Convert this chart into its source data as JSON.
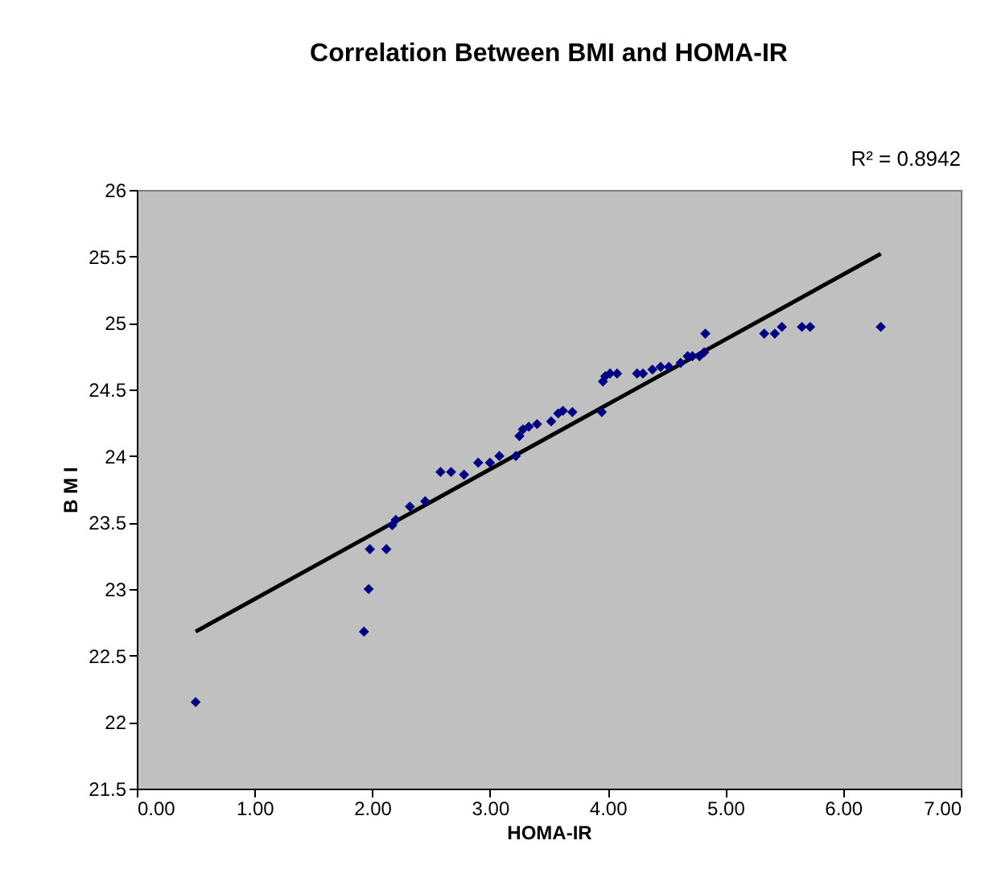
{
  "chart_data": {
    "type": "scatter",
    "title": "Correlation Between BMI and HOMA-IR",
    "xlabel": "HOMA-IR",
    "ylabel": "B M I",
    "annotations": [
      "R² = 0.8942"
    ],
    "xlim": [
      0,
      7
    ],
    "xticks": [
      {
        "value": 0,
        "label": "0.00"
      },
      {
        "value": 1,
        "label": "1.00"
      },
      {
        "value": 2,
        "label": "2.00"
      },
      {
        "value": 3,
        "label": "3.00"
      },
      {
        "value": 4,
        "label": "4.00"
      },
      {
        "value": 5,
        "label": "5.00"
      },
      {
        "value": 6,
        "label": "6.00"
      },
      {
        "value": 7,
        "label": "7.00"
      }
    ],
    "ylim": [
      21.5,
      26
    ],
    "yticks": [
      21.5,
      22,
      22.5,
      23,
      23.5,
      24,
      24.5,
      25,
      25.5,
      26
    ],
    "grid": false,
    "line_style": "solid",
    "series": [
      {
        "marker": "diamond",
        "color": "#000080",
        "x": [
          0.5,
          1.93,
          1.97,
          1.98,
          2.12,
          2.17,
          2.2,
          2.32,
          2.45,
          2.58,
          2.67,
          2.78,
          2.9,
          3.0,
          3.08,
          3.22,
          3.25,
          3.28,
          3.33,
          3.4,
          3.52,
          3.58,
          3.62,
          3.7,
          3.95,
          3.96,
          3.98,
          4.02,
          4.08,
          4.25,
          4.3,
          4.38,
          4.45,
          4.52,
          4.62,
          4.68,
          4.72,
          4.78,
          4.82,
          4.83,
          5.33,
          5.42,
          5.48,
          5.65,
          5.72,
          6.32
        ],
        "values": [
          22.15,
          22.68,
          23.0,
          23.3,
          23.3,
          23.48,
          23.52,
          23.62,
          23.66,
          23.88,
          23.88,
          23.86,
          23.95,
          23.95,
          24.0,
          24.0,
          24.15,
          24.2,
          24.22,
          24.24,
          24.26,
          24.32,
          24.34,
          24.33,
          24.33,
          24.56,
          24.6,
          24.62,
          24.62,
          24.62,
          24.62,
          24.65,
          24.67,
          24.67,
          24.7,
          24.75,
          24.75,
          24.75,
          24.78,
          24.92,
          24.92,
          24.92,
          24.97,
          24.97,
          24.97,
          24.97
        ]
      },
      {
        "type": "line",
        "color": "#000000",
        "x": [
          0.5,
          6.32
        ],
        "values": [
          22.68,
          25.52
        ]
      }
    ]
  }
}
